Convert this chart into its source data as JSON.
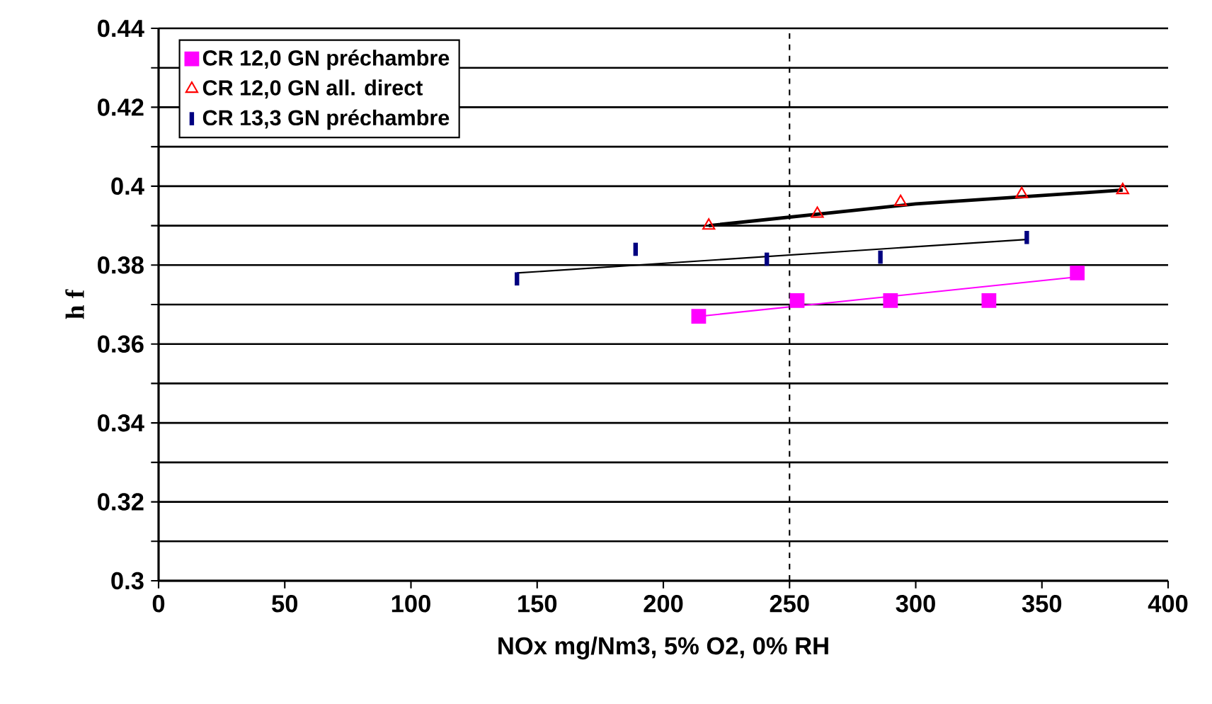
{
  "chart_data": {
    "type": "scatter",
    "xlabel": "NOx mg/Nm3, 5% O2, 0% RH",
    "ylabel": "h f",
    "xlim": [
      0,
      400
    ],
    "ylim": [
      0.3,
      0.44
    ],
    "xticks": [
      0,
      50,
      100,
      150,
      200,
      250,
      300,
      350,
      400
    ],
    "yticks": [
      0.3,
      {
        "value": 0.31,
        "label": null
      },
      0.32,
      {
        "value": 0.33,
        "label": null
      },
      0.34,
      {
        "value": 0.35,
        "label": null
      },
      0.36,
      {
        "value": 0.37,
        "label": null
      },
      0.38,
      {
        "value": 0.39,
        "label": null
      },
      0.4,
      {
        "value": 0.41,
        "label": null
      },
      0.42,
      {
        "value": 0.43,
        "label": null
      },
      0.44
    ],
    "grid": "y",
    "legend": "top left",
    "ref_lines": [
      {
        "axis": "x",
        "value": 250,
        "color": "#000000",
        "line_style": "dashed"
      }
    ],
    "series": [
      {
        "name": "CR 12,0 GN préchambre",
        "color": "#ff00ff",
        "marker": "square",
        "x": [
          214,
          253,
          290,
          329,
          364
        ],
        "values": [
          0.367,
          0.371,
          0.371,
          0.371,
          0.378
        ]
      },
      {
        "name": "CR 12,0 GN all. direct",
        "color": "#ff0000",
        "marker": "triangle",
        "x": [
          218,
          261,
          294,
          342,
          382
        ],
        "values": [
          0.39,
          0.393,
          0.396,
          0.398,
          0.399
        ]
      },
      {
        "name": "CR 13,3 GN préchambre",
        "color": "#000080",
        "x": [
          142,
          189,
          241,
          286,
          344
        ],
        "values": [
          0.3765,
          0.384,
          0.3815,
          0.382,
          0.387
        ]
      },
      {
        "type": "line",
        "color": "#ff00ff",
        "marker": "none",
        "x": [
          214,
          364
        ],
        "values": [
          0.367,
          0.377
        ]
      },
      {
        "type": "line",
        "color": "#000000",
        "marker": "none",
        "x": [
          218,
          300,
          382
        ],
        "values": [
          0.39,
          0.3955,
          0.399
        ]
      },
      {
        "type": "line",
        "color": "#000000",
        "marker": "none",
        "x": [
          142,
          344
        ],
        "values": [
          0.378,
          0.3865
        ]
      }
    ]
  }
}
